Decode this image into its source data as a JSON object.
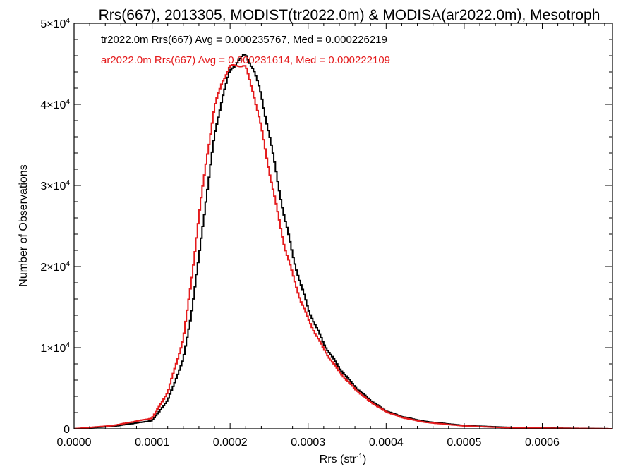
{
  "chart_data": {
    "type": "line",
    "title": "Rrs(667), 2013305, MODIST(tr2022.0m) & MODISA(ar2022.0m), Mesotroph",
    "xlabel": "Rrs (str",
    "xlabel_sup": "-1",
    "xlabel_close": ")",
    "ylabel": "Number of Observations",
    "xlim": [
      0.0,
      0.00069
    ],
    "ylim": [
      0,
      50000
    ],
    "grid": false,
    "x_ticks": [
      0.0,
      0.0001,
      0.0002,
      0.0003,
      0.0004,
      0.0005,
      0.0006
    ],
    "x_tick_labels": [
      "0.0000",
      "0.0001",
      "0.0002",
      "0.0003",
      "0.0004",
      "0.0005",
      "0.0006"
    ],
    "y_ticks": [
      0,
      10000,
      20000,
      30000,
      40000,
      50000
    ],
    "y_tick_labels": [
      {
        "base": "0",
        "exp": ""
      },
      {
        "base": "1×10",
        "exp": "4"
      },
      {
        "base": "2×10",
        "exp": "4"
      },
      {
        "base": "3×10",
        "exp": "4"
      },
      {
        "base": "4×10",
        "exp": "4"
      },
      {
        "base": "5×10",
        "exp": "4"
      }
    ],
    "legend_entries": [
      "tr2022.0m Rrs(667) Avg = 0.000235767, Med = 0.000226219",
      "ar2022.0m Rrs(667) Avg = 0.000231614, Med = 0.000222109"
    ],
    "series": [
      {
        "color": "#000000",
        "x": [
          0.0,
          5e-05,
          0.0001,
          0.00012,
          0.00014,
          0.00015,
          0.00016,
          0.00017,
          0.00018,
          0.00019,
          0.0002,
          0.00021,
          0.00022,
          0.00023,
          0.00024,
          0.00025,
          0.00026,
          0.00027,
          0.00028,
          0.00029,
          0.0003,
          0.00032,
          0.00034,
          0.00036,
          0.00038,
          0.0004,
          0.00042,
          0.00045,
          0.0005,
          0.00055,
          0.0006,
          0.00069
        ],
        "values": [
          0,
          300,
          1000,
          3500,
          8500,
          14000,
          21000,
          29000,
          36000,
          41000,
          44000,
          45500,
          46000,
          44500,
          41000,
          36500,
          31000,
          26000,
          21500,
          18000,
          14800,
          10500,
          7500,
          5200,
          3500,
          2200,
          1500,
          900,
          400,
          200,
          100,
          0
        ]
      },
      {
        "color": "#e41a1c",
        "x": [
          0.0,
          5e-05,
          0.0001,
          0.00012,
          0.00014,
          0.00015,
          0.00016,
          0.00017,
          0.00018,
          0.00019,
          0.0002,
          0.00021,
          0.00022,
          0.00023,
          0.00024,
          0.00025,
          0.00026,
          0.00027,
          0.00028,
          0.00029,
          0.0003,
          0.00032,
          0.00034,
          0.00036,
          0.00038,
          0.0004,
          0.00042,
          0.00045,
          0.0005,
          0.00055,
          0.0006,
          0.00069
        ],
        "values": [
          0,
          400,
          1300,
          4500,
          11000,
          18000,
          26000,
          33500,
          39500,
          43000,
          44500,
          45000,
          44500,
          41500,
          37000,
          32000,
          27000,
          22500,
          19000,
          16000,
          13500,
          9800,
          7000,
          4900,
          3300,
          2100,
          1400,
          800,
          350,
          150,
          80,
          0
        ]
      }
    ]
  }
}
